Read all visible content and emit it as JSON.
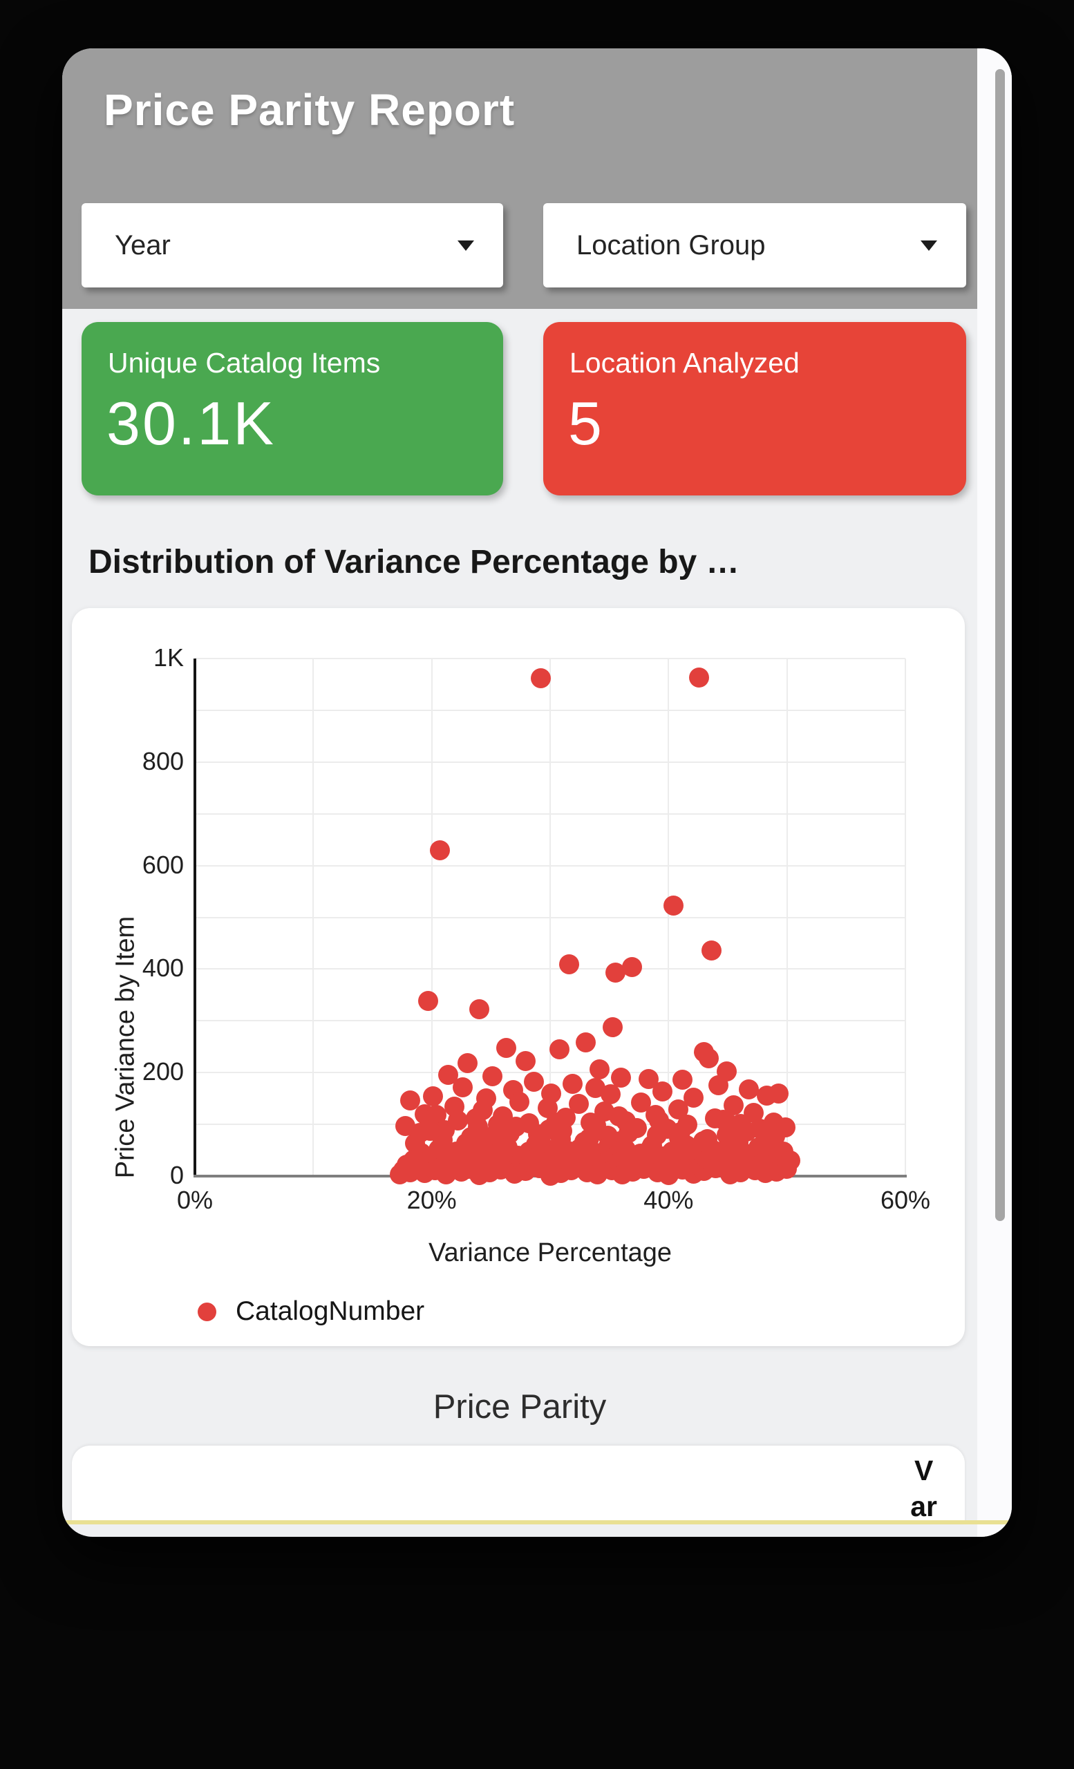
{
  "header": {
    "title": "Price Parity Report"
  },
  "filters": {
    "year": {
      "label": "Year"
    },
    "location_group": {
      "label": "Location Group"
    }
  },
  "kpis": [
    {
      "label": "Unique Catalog Items",
      "value": "30.1K",
      "color": "#4aa850"
    },
    {
      "label": "Location Analyzed",
      "value": "5",
      "color": "#e74438"
    }
  ],
  "section_title": "Distribution of Variance Percentage by …",
  "chart_data": {
    "type": "scatter",
    "title": "Distribution of Variance Percentage by …",
    "xlabel": "Variance Percentage",
    "ylabel": "Price Variance by Item",
    "xlim": [
      0,
      60
    ],
    "ylim": [
      0,
      1000
    ],
    "grid": true,
    "grid_step_x": 10,
    "grid_step_y": 100,
    "legend_position": "bottom-left",
    "x_axis": {
      "label": "Variance Percentage",
      "ticks": [
        {
          "label": "0%",
          "value": 0
        },
        {
          "label": "20%",
          "value": 20
        },
        {
          "label": "40%",
          "value": 40
        },
        {
          "label": "60%",
          "value": 60
        }
      ]
    },
    "y_axis": {
      "label": "Price Variance by Item",
      "ticks": [
        {
          "label": "0",
          "value": 0
        },
        {
          "label": "200",
          "value": 200
        },
        {
          "label": "400",
          "value": 400
        },
        {
          "label": "600",
          "value": 600
        },
        {
          "label": "800",
          "value": 800
        },
        {
          "label": "1K",
          "value": 1000
        }
      ]
    },
    "series": [
      {
        "name": "CatalogNumber",
        "color": "#e2403c",
        "points": [
          [
            29.2,
            962
          ],
          [
            42.6,
            963
          ],
          [
            20.7,
            629
          ],
          [
            40.4,
            523
          ],
          [
            43.6,
            436
          ],
          [
            31.6,
            409
          ],
          [
            36.9,
            404
          ],
          [
            35.5,
            393
          ],
          [
            19.7,
            338
          ],
          [
            24.0,
            322
          ],
          [
            35.3,
            288
          ],
          [
            33.0,
            258
          ],
          [
            26.3,
            247
          ],
          [
            30.8,
            245
          ],
          [
            43.0,
            240
          ],
          [
            43.4,
            228
          ],
          [
            27.9,
            222
          ],
          [
            23.0,
            218
          ],
          [
            34.2,
            206
          ],
          [
            44.9,
            202
          ],
          [
            21.4,
            196
          ],
          [
            25.1,
            193
          ],
          [
            36.0,
            190
          ],
          [
            38.3,
            188
          ],
          [
            41.2,
            186
          ],
          [
            28.6,
            182
          ],
          [
            31.9,
            178
          ],
          [
            44.2,
            176
          ],
          [
            22.6,
            172
          ],
          [
            33.8,
            170
          ],
          [
            46.8,
            168
          ],
          [
            26.9,
            166
          ],
          [
            39.5,
            163
          ],
          [
            30.1,
            160
          ],
          [
            35.1,
            158
          ],
          [
            48.3,
            156
          ],
          [
            20.1,
            154
          ],
          [
            42.1,
            152
          ],
          [
            24.6,
            150
          ],
          [
            49.3,
            159
          ],
          [
            18.2,
            146
          ],
          [
            27.4,
            144
          ],
          [
            37.7,
            142
          ],
          [
            32.4,
            139
          ],
          [
            45.5,
            137
          ],
          [
            21.9,
            134
          ],
          [
            29.8,
            132
          ],
          [
            40.8,
            129
          ],
          [
            24.3,
            127
          ],
          [
            34.6,
            125
          ],
          [
            47.2,
            122
          ],
          [
            19.4,
            120
          ],
          [
            38.9,
            118
          ],
          [
            26.0,
            115
          ],
          [
            31.3,
            113
          ],
          [
            43.9,
            111
          ],
          [
            22.2,
            108
          ],
          [
            36.4,
            106
          ],
          [
            48.9,
            104
          ],
          [
            28.2,
            102
          ],
          [
            41.6,
            100
          ],
          [
            20.4,
            118
          ],
          [
            33.4,
            104
          ],
          [
            46.1,
            101
          ],
          [
            25.6,
            100
          ],
          [
            39.2,
            107
          ],
          [
            30.5,
            103
          ],
          [
            44.6,
            109
          ],
          [
            23.7,
            112
          ],
          [
            35.8,
            116
          ],
          [
            17.8,
            97
          ],
          [
            27.1,
            95
          ],
          [
            37.3,
            93
          ],
          [
            47.7,
            91
          ],
          [
            21.1,
            89
          ],
          [
            31.0,
            87
          ],
          [
            41.0,
            85
          ],
          [
            19.0,
            83
          ],
          [
            29.0,
            81
          ],
          [
            39.0,
            79
          ],
          [
            49.0,
            77
          ],
          [
            23.3,
            75
          ],
          [
            33.3,
            73
          ],
          [
            43.3,
            71
          ],
          [
            25.9,
            69
          ],
          [
            35.9,
            67
          ],
          [
            45.9,
            65
          ],
          [
            18.6,
            63
          ],
          [
            28.8,
            61
          ],
          [
            38.6,
            60
          ],
          [
            48.6,
            62
          ],
          [
            22.9,
            64
          ],
          [
            32.9,
            66
          ],
          [
            42.9,
            68
          ],
          [
            20.9,
            70
          ],
          [
            30.9,
            72
          ],
          [
            40.9,
            74
          ],
          [
            24.9,
            76
          ],
          [
            34.9,
            78
          ],
          [
            44.9,
            80
          ],
          [
            26.6,
            82
          ],
          [
            36.6,
            84
          ],
          [
            46.6,
            86
          ],
          [
            19.9,
            88
          ],
          [
            29.9,
            90
          ],
          [
            39.9,
            92
          ],
          [
            49.9,
            94
          ],
          [
            23.9,
            96
          ],
          [
            33.9,
            98
          ],
          [
            45.2,
            99
          ],
          [
            17.3,
            4
          ],
          [
            17.6,
            12
          ],
          [
            17.9,
            22
          ],
          [
            18.2,
            8
          ],
          [
            18.5,
            31
          ],
          [
            18.8,
            16
          ],
          [
            19.1,
            45
          ],
          [
            19.4,
            6
          ],
          [
            19.7,
            27
          ],
          [
            20.0,
            38
          ],
          [
            20.3,
            11
          ],
          [
            20.6,
            52
          ],
          [
            20.9,
            19
          ],
          [
            21.2,
            3
          ],
          [
            21.5,
            35
          ],
          [
            21.8,
            24
          ],
          [
            22.1,
            47
          ],
          [
            22.5,
            9
          ],
          [
            22.8,
            41
          ],
          [
            23.1,
            14
          ],
          [
            23.4,
            57
          ],
          [
            23.7,
            29
          ],
          [
            24.0,
            2
          ],
          [
            24.3,
            50
          ],
          [
            24.6,
            21
          ],
          [
            24.9,
            7
          ],
          [
            25.2,
            33
          ],
          [
            25.5,
            44
          ],
          [
            25.8,
            13
          ],
          [
            26.1,
            26
          ],
          [
            26.4,
            55
          ],
          [
            26.7,
            18
          ],
          [
            27.0,
            5
          ],
          [
            27.3,
            39
          ],
          [
            27.6,
            30
          ],
          [
            27.9,
            10
          ],
          [
            28.2,
            48
          ],
          [
            28.5,
            23
          ],
          [
            28.8,
            36
          ],
          [
            29.1,
            15
          ],
          [
            29.4,
            58
          ],
          [
            29.7,
            28
          ],
          [
            30.0,
            1
          ],
          [
            30.3,
            42
          ],
          [
            30.6,
            20
          ],
          [
            30.9,
            6
          ],
          [
            31.2,
            34
          ],
          [
            31.5,
            49
          ],
          [
            31.8,
            12
          ],
          [
            32.1,
            25
          ],
          [
            32.5,
            53
          ],
          [
            32.8,
            17
          ],
          [
            33.1,
            8
          ],
          [
            33.4,
            37
          ],
          [
            33.7,
            46
          ],
          [
            34.0,
            4
          ],
          [
            34.3,
            31
          ],
          [
            34.6,
            22
          ],
          [
            34.9,
            56
          ],
          [
            35.2,
            11
          ],
          [
            35.5,
            40
          ],
          [
            35.8,
            27
          ],
          [
            36.1,
            3
          ],
          [
            36.4,
            51
          ],
          [
            36.7,
            19
          ],
          [
            37.0,
            9
          ],
          [
            37.3,
            32
          ],
          [
            37.6,
            43
          ],
          [
            37.9,
            14
          ],
          [
            38.2,
            24
          ],
          [
            38.5,
            54
          ],
          [
            38.8,
            16
          ],
          [
            39.1,
            7
          ],
          [
            39.4,
            38
          ],
          [
            39.7,
            29
          ],
          [
            40.0,
            2
          ],
          [
            40.3,
            47
          ],
          [
            40.6,
            21
          ],
          [
            40.9,
            35
          ],
          [
            41.2,
            13
          ],
          [
            41.5,
            59
          ],
          [
            41.8,
            26
          ],
          [
            42.1,
            5
          ],
          [
            42.4,
            44
          ],
          [
            42.7,
            18
          ],
          [
            43.0,
            10
          ],
          [
            43.3,
            33
          ],
          [
            43.7,
            52
          ],
          [
            44.0,
            15
          ],
          [
            44.3,
            23
          ],
          [
            44.6,
            49
          ],
          [
            44.9,
            20
          ],
          [
            45.2,
            4
          ],
          [
            45.5,
            36
          ],
          [
            45.8,
            28
          ],
          [
            46.1,
            8
          ],
          [
            46.4,
            45
          ],
          [
            46.7,
            17
          ],
          [
            47.0,
            31
          ],
          [
            47.3,
            12
          ],
          [
            47.6,
            55
          ],
          [
            47.9,
            25
          ],
          [
            48.2,
            6
          ],
          [
            48.5,
            41
          ],
          [
            48.8,
            22
          ],
          [
            49.1,
            9
          ],
          [
            49.4,
            39
          ],
          [
            49.7,
            48
          ],
          [
            50.0,
            14
          ],
          [
            50.3,
            30
          ]
        ]
      }
    ]
  },
  "bottom": {
    "section_title": "Price Parity",
    "table_column_header_wrapped": "V\nar"
  },
  "colors": {
    "header_bg": "#9d9d9d",
    "app_bg": "#eff0f2",
    "kpi_green": "#4aa850",
    "kpi_red": "#e74438",
    "dot_red": "#e2403c",
    "yellow_divider": "#e9e093",
    "scroll_thumb": "#a5a5a5"
  }
}
